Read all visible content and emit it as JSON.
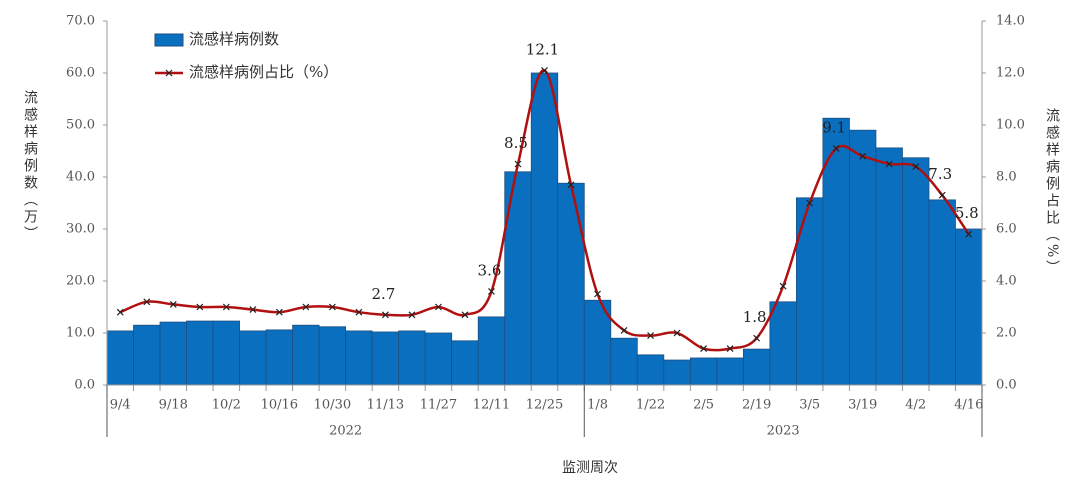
{
  "chart_data": {
    "type": "bar-line",
    "xlabel": "监测周次",
    "ylabel": "流感样病例数（万）",
    "y2label": "流感样病例占比（%）",
    "categories": [
      "9/4",
      null,
      "9/18",
      null,
      "10/2",
      null,
      "10/16",
      null,
      "10/30",
      null,
      "11/13",
      null,
      "11/27",
      null,
      "12/11",
      null,
      "12/25",
      null,
      "1/8",
      null,
      "1/22",
      null,
      "2/5",
      null,
      "2/19",
      null,
      "3/5",
      null,
      "3/19",
      null,
      "4/2",
      null,
      "4/16"
    ],
    "x_groups": [
      {
        "label": "2022",
        "count": 18
      },
      {
        "label": "2023",
        "count": 15
      }
    ],
    "series": [
      {
        "name": "流感样病例数",
        "type": "bar",
        "color": "#0a6fbf",
        "values": [
          10.4,
          11.5,
          12.1,
          12.3,
          12.3,
          10.4,
          10.6,
          11.5,
          11.2,
          10.4,
          10.2,
          10.4,
          10.0,
          8.5,
          13.1,
          41.0,
          60.0,
          38.8,
          16.3,
          9.0,
          5.8,
          4.8,
          5.2,
          5.2,
          6.9,
          16.0,
          36.0,
          51.3,
          49.0,
          45.6,
          43.7,
          35.6,
          30.0
        ]
      },
      {
        "name": "流感样病例占比（%）",
        "type": "line",
        "axis": "y2",
        "color": "#b01010",
        "values": [
          2.8,
          3.2,
          3.1,
          3.0,
          3.0,
          2.9,
          2.8,
          3.0,
          3.0,
          2.8,
          2.7,
          2.7,
          3.0,
          2.7,
          3.6,
          8.5,
          12.1,
          7.7,
          3.5,
          2.1,
          1.9,
          2.0,
          1.4,
          1.4,
          1.8,
          3.8,
          7.0,
          9.1,
          8.8,
          8.5,
          8.4,
          7.3,
          5.8
        ],
        "value_labels": [
          null,
          null,
          null,
          null,
          null,
          null,
          null,
          null,
          null,
          null,
          "2.7",
          null,
          null,
          null,
          "3.6",
          "8.5",
          "12.1",
          null,
          null,
          null,
          null,
          null,
          null,
          null,
          "1.8",
          null,
          null,
          "9.1",
          null,
          null,
          null,
          "7.3",
          "5.8"
        ]
      }
    ],
    "ylim": [
      0,
      70
    ],
    "yticks": [
      {
        "value": 0,
        "label": "0.0"
      },
      {
        "value": 10,
        "label": "10.0"
      },
      {
        "value": 20,
        "label": "20.0"
      },
      {
        "value": 30,
        "label": "30.0"
      },
      {
        "value": 40,
        "label": "40.0"
      },
      {
        "value": 50,
        "label": "50.0"
      },
      {
        "value": 60,
        "label": "60.0"
      },
      {
        "value": 70,
        "label": "70.0"
      }
    ],
    "y2lim": [
      0,
      14
    ],
    "y2ticks": [
      {
        "value": 0,
        "label": "0.0"
      },
      {
        "value": 2,
        "label": "2.0"
      },
      {
        "value": 4,
        "label": "4.0"
      },
      {
        "value": 6,
        "label": "6.0"
      },
      {
        "value": 8,
        "label": "8.0"
      },
      {
        "value": 10,
        "label": "10.0"
      },
      {
        "value": 12,
        "label": "12.0"
      },
      {
        "value": 14,
        "label": "14.0"
      }
    ],
    "legend": "top-left"
  }
}
